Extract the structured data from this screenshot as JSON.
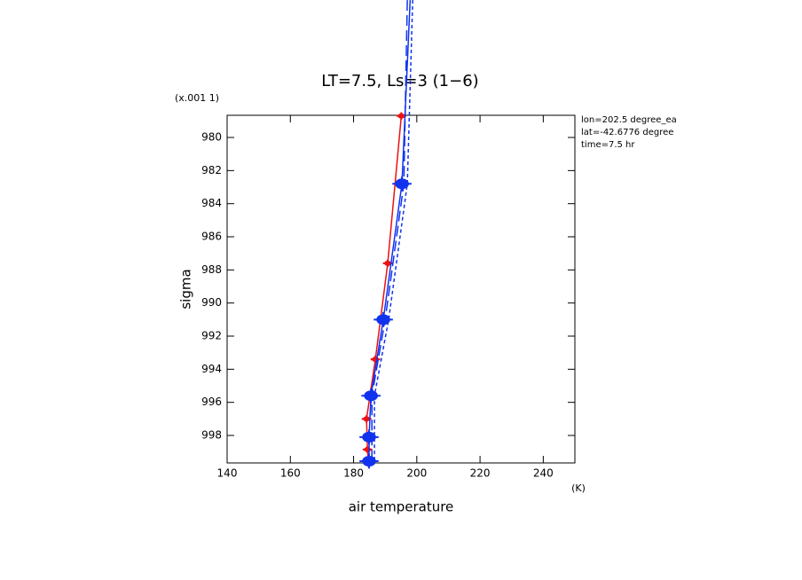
{
  "chart_data": {
    "type": "line",
    "title": "LT=7.5, Ls=3 (1−6)",
    "y_scale_label": "(x.001 1)",
    "ylabel": "sigma",
    "xlabel": "air temperature",
    "x_unit": "(K)",
    "notes": [
      "lon=202.5 degree_ea",
      "lat=-42.6776 degree",
      "time=7.5 hr"
    ],
    "xlim": [
      140,
      250
    ],
    "xticks": [
      140,
      160,
      180,
      200,
      220,
      240
    ],
    "ylim": [
      978.66,
      999.66
    ],
    "yticks": [
      980,
      982,
      984,
      986,
      988,
      990,
      992,
      994,
      996,
      998
    ],
    "y_inverted": true,
    "series": [
      {
        "color": "#ee1111",
        "dash": "none",
        "marker": "small",
        "x": [
          195.1,
          190.8,
          186.9,
          184.1,
          184.4,
          184.7
        ],
        "values": [
          978.7,
          987.6,
          993.4,
          997.0,
          998.85,
          999.66
        ]
      },
      {
        "color": "#1133ee",
        "dash": "none",
        "marker": "large",
        "x": [
          197.9,
          195.3,
          189.4,
          185.5,
          184.9,
          184.9
        ],
        "values": [
          971.7,
          982.8,
          991.0,
          995.6,
          998.1,
          999.55
        ]
      },
      {
        "color": "#1133ee",
        "dash": "12,5",
        "marker": "none",
        "x": [
          197.0,
          195.9,
          190.0,
          185.8,
          185.8,
          185.8
        ],
        "values": [
          971.7,
          982.8,
          991.0,
          995.6,
          998.1,
          999.55
        ]
      },
      {
        "color": "#1133ee",
        "dash": "4,3",
        "marker": "none",
        "x": [
          198.7,
          197.0,
          191.1,
          186.6,
          186.6,
          186.6
        ],
        "values": [
          971.7,
          982.8,
          991.0,
          995.6,
          998.1,
          999.55
        ]
      }
    ]
  }
}
